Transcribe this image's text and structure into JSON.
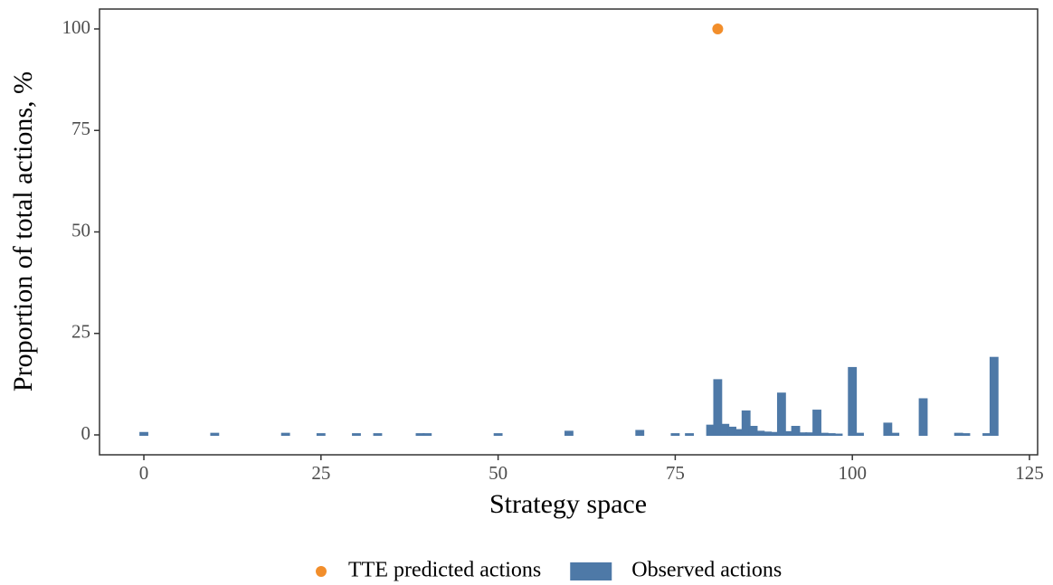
{
  "chart_data": {
    "type": "bar",
    "x_label": "Strategy space",
    "y_label": "Proportion of total actions, %",
    "xlim": [
      -6.26,
      126.15
    ],
    "ylim": [
      -4.9,
      104.9
    ],
    "xticks": [
      0,
      25,
      50,
      75,
      100,
      125
    ],
    "yticks": [
      0,
      25,
      50,
      75,
      100
    ],
    "grid": false,
    "legend": "bottom",
    "series": [
      {
        "name": "TTE predicted actions",
        "type": "scatter",
        "color": "#f28e2b",
        "x": [
          81
        ],
        "values": [
          100
        ]
      },
      {
        "name": "Observed actions",
        "type": "bar",
        "color": "#4e79a7",
        "x": [
          0,
          10,
          20,
          25,
          30,
          33,
          39,
          40,
          50,
          60,
          70,
          75,
          77,
          80,
          81,
          82,
          83,
          84,
          85,
          86,
          87,
          88,
          89,
          90,
          91,
          92,
          93,
          94,
          95,
          96,
          97,
          98,
          100,
          101,
          105,
          106,
          110,
          115,
          116,
          119,
          120
        ],
        "values": [
          0.5,
          0.3,
          0.3,
          0.2,
          0.2,
          0.2,
          0.2,
          0.2,
          0.2,
          0.8,
          1.0,
          0.2,
          0.2,
          2.3,
          13.5,
          2.5,
          1.8,
          1.2,
          5.8,
          2.0,
          0.8,
          0.6,
          0.5,
          10.2,
          0.7,
          2.0,
          0.4,
          0.4,
          6.0,
          0.3,
          0.2,
          0.1,
          16.5,
          0.3,
          2.8,
          0.3,
          8.8,
          0.3,
          0.2,
          0.2,
          19.0
        ]
      }
    ]
  }
}
